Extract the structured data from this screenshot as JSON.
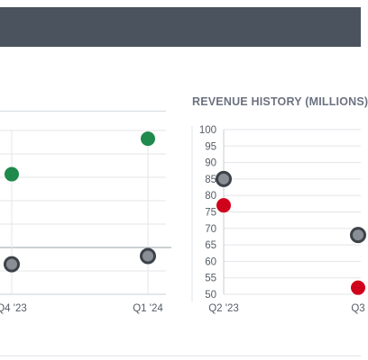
{
  "chart_data": [
    {
      "type": "scatter",
      "title": "",
      "xlabel": "",
      "ylabel": "",
      "categories": [
        "Q4 '23",
        "Q1 '24"
      ],
      "series": [
        {
          "values": [
            84,
            97
          ],
          "color": "#1e8a4c"
        },
        {
          "values": [
            51,
            54
          ],
          "color": "#7a7f86"
        }
      ],
      "grid": true
    },
    {
      "type": "scatter",
      "title": "REVENUE HISTORY (MILLIONS)",
      "xlabel": "",
      "ylabel": "",
      "categories": [
        "Q2 '23",
        "Q3"
      ],
      "ylim": [
        50,
        100
      ],
      "yticks": [
        100,
        95,
        90,
        85,
        80,
        75,
        70,
        65,
        60,
        55,
        50
      ],
      "series": [
        {
          "values": [
            85,
            68
          ],
          "color": "#7a7f86"
        },
        {
          "values": [
            77,
            52
          ],
          "color": "#d0021b"
        }
      ],
      "grid": true
    }
  ]
}
